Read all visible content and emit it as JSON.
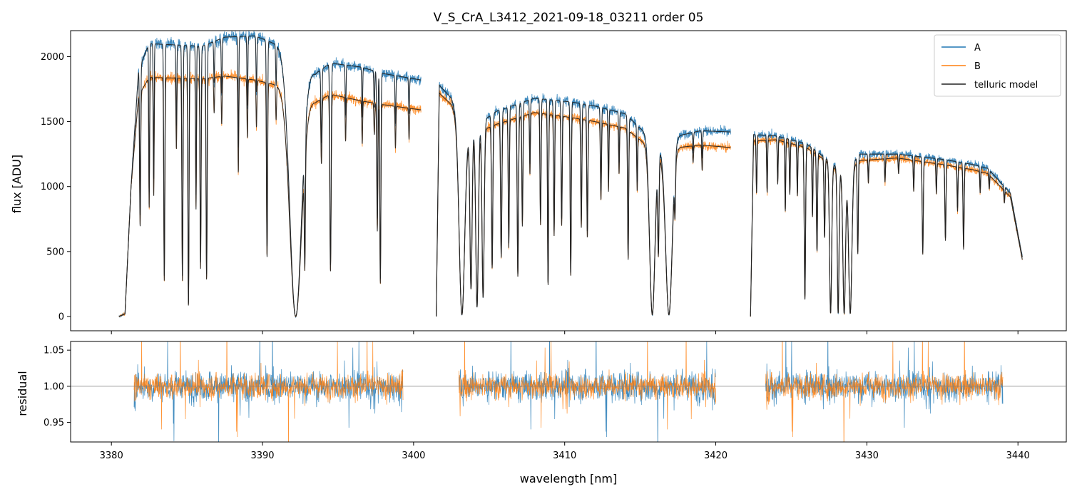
{
  "colors": {
    "A": "#1f77b4",
    "B": "#ff7f0e",
    "model": "#222222",
    "frame": "#000000",
    "refline": "#808080"
  },
  "chart_data": [
    {
      "type": "line",
      "id": "flux-panel",
      "title": "V_S_CrA_L3412_2021-09-18_03211  order 05",
      "xlabel": "",
      "ylabel": "flux [ADU]",
      "xlim": [
        3377.3,
        3443.2
      ],
      "ylim": [
        -110,
        2200
      ],
      "xticks": [
        3380,
        3390,
        3400,
        3410,
        3420,
        3430,
        3440
      ],
      "xtick_labels_visible": false,
      "yticks": [
        0,
        500,
        1000,
        1500,
        2000
      ],
      "ytick_labels": [
        "0",
        "500",
        "1000",
        "1500",
        "2000"
      ],
      "legend": {
        "position": "top-right",
        "entries": [
          "A",
          "B",
          "telluric model"
        ]
      },
      "segments": [
        {
          "x_range": [
            3380.5,
            3400.5
          ],
          "continuum_A": [
            [
              3380.5,
              0
            ],
            [
              3380.9,
              20
            ],
            [
              3381.3,
              1000
            ],
            [
              3381.8,
              1900
            ],
            [
              3382.5,
              2100
            ],
            [
              3386,
              2080
            ],
            [
              3387.5,
              2150
            ],
            [
              3389.5,
              2160
            ],
            [
              3391,
              2090
            ],
            [
              3393.5,
              1870
            ],
            [
              3394.5,
              1950
            ],
            [
              3396.5,
              1920
            ],
            [
              3398,
              1870
            ],
            [
              3400.5,
              1820
            ]
          ],
          "continuum_B": [
            [
              3380.5,
              0
            ],
            [
              3380.9,
              20
            ],
            [
              3381.3,
              1000
            ],
            [
              3381.8,
              1700
            ],
            [
              3382.5,
              1840
            ],
            [
              3386,
              1830
            ],
            [
              3387.5,
              1850
            ],
            [
              3389.5,
              1820
            ],
            [
              3391,
              1780
            ],
            [
              3393.5,
              1650
            ],
            [
              3394.5,
              1710
            ],
            [
              3396.5,
              1660
            ],
            [
              3398,
              1630
            ],
            [
              3400.5,
              1590
            ]
          ]
        },
        {
          "x_range": [
            3401.5,
            3421.0
          ],
          "continuum_A": [
            [
              3401.5,
              0
            ],
            [
              3401.7,
              1780
            ],
            [
              3402.5,
              1680
            ],
            [
              3403.3,
              1400
            ],
            [
              3405.5,
              1580
            ],
            [
              3408,
              1680
            ],
            [
              3410.5,
              1650
            ],
            [
              3412,
              1620
            ],
            [
              3414,
              1560
            ],
            [
              3416.5,
              1280
            ],
            [
              3417.5,
              1390
            ],
            [
              3419,
              1430
            ],
            [
              3421,
              1420
            ]
          ],
          "continuum_B": [
            [
              3401.5,
              0
            ],
            [
              3401.7,
              1720
            ],
            [
              3402.5,
              1630
            ],
            [
              3403.3,
              1370
            ],
            [
              3405.5,
              1480
            ],
            [
              3408,
              1570
            ],
            [
              3410.5,
              1530
            ],
            [
              3412,
              1500
            ],
            [
              3414,
              1450
            ],
            [
              3416.5,
              1220
            ],
            [
              3417.5,
              1300
            ],
            [
              3419,
              1320
            ],
            [
              3421,
              1300
            ]
          ]
        },
        {
          "x_range": [
            3422.3,
            3440.3
          ],
          "continuum_A": [
            [
              3422.3,
              0
            ],
            [
              3422.5,
              1400
            ],
            [
              3424,
              1390
            ],
            [
              3426,
              1330
            ],
            [
              3427.5,
              1200
            ],
            [
              3428.5,
              1100
            ],
            [
              3429.5,
              1250
            ],
            [
              3432,
              1250
            ],
            [
              3435,
              1210
            ],
            [
              3437,
              1170
            ],
            [
              3438,
              1140
            ],
            [
              3439.5,
              950
            ],
            [
              3440.3,
              450
            ]
          ],
          "continuum_B": [
            [
              3422.3,
              0
            ],
            [
              3422.5,
              1350
            ],
            [
              3424,
              1360
            ],
            [
              3426,
              1300
            ],
            [
              3427.5,
              1180
            ],
            [
              3428.5,
              1080
            ],
            [
              3429.5,
              1200
            ],
            [
              3432,
              1220
            ],
            [
              3435,
              1170
            ],
            [
              3437,
              1130
            ],
            [
              3438,
              1100
            ],
            [
              3439.5,
              920
            ],
            [
              3440.3,
              430
            ]
          ]
        }
      ],
      "absorption_lines": [
        [
          3381.9,
          0.6,
          0.05
        ],
        [
          3382.5,
          0.55,
          0.04
        ],
        [
          3382.8,
          0.5,
          0.04
        ],
        [
          3383.5,
          0.85,
          0.05
        ],
        [
          3384.3,
          0.3,
          0.04
        ],
        [
          3384.7,
          0.85,
          0.05
        ],
        [
          3385.1,
          0.96,
          0.05
        ],
        [
          3385.6,
          0.55,
          0.04
        ],
        [
          3385.9,
          0.8,
          0.05
        ],
        [
          3386.3,
          0.85,
          0.05
        ],
        [
          3386.8,
          0.15,
          0.04
        ],
        [
          3387.3,
          0.2,
          0.04
        ],
        [
          3388.4,
          0.4,
          0.04
        ],
        [
          3389,
          0.25,
          0.04
        ],
        [
          3389.6,
          0.2,
          0.04
        ],
        [
          3390.3,
          0.75,
          0.05
        ],
        [
          3390.9,
          0.15,
          0.04
        ],
        [
          3392.2,
          1.0,
          0.55
        ],
        [
          3392.8,
          0.7,
          0.05
        ],
        [
          3393.9,
          0.3,
          0.05
        ],
        [
          3394.5,
          0.8,
          0.06
        ],
        [
          3395.5,
          0.2,
          0.04
        ],
        [
          3396.6,
          0.2,
          0.04
        ],
        [
          3397.4,
          0.15,
          0.04
        ],
        [
          3397.6,
          0.6,
          0.05
        ],
        [
          3397.8,
          0.85,
          0.05
        ],
        [
          3398.8,
          0.2,
          0.04
        ],
        [
          3399.7,
          0.15,
          0.04
        ],
        [
          3403.2,
          0.99,
          0.25
        ],
        [
          3403.8,
          0.85,
          0.1
        ],
        [
          3404.2,
          0.95,
          0.12
        ],
        [
          3404.6,
          0.9,
          0.1
        ],
        [
          3405.2,
          0.75,
          0.06
        ],
        [
          3405.8,
          0.7,
          0.06
        ],
        [
          3406.3,
          0.65,
          0.05
        ],
        [
          3406.9,
          0.8,
          0.06
        ],
        [
          3407.2,
          0.55,
          0.05
        ],
        [
          3407.7,
          0.3,
          0.04
        ],
        [
          3408.4,
          0.55,
          0.05
        ],
        [
          3408.9,
          0.85,
          0.05
        ],
        [
          3409.3,
          0.6,
          0.05
        ],
        [
          3409.8,
          0.55,
          0.05
        ],
        [
          3410.4,
          0.8,
          0.05
        ],
        [
          3411.1,
          0.55,
          0.05
        ],
        [
          3411.5,
          0.6,
          0.05
        ],
        [
          3412.4,
          0.4,
          0.05
        ],
        [
          3412.9,
          0.35,
          0.04
        ],
        [
          3413.6,
          0.25,
          0.04
        ],
        [
          3414.2,
          0.7,
          0.05
        ],
        [
          3414.8,
          0.3,
          0.04
        ],
        [
          3415.8,
          0.99,
          0.25
        ],
        [
          3416.2,
          0.6,
          0.06
        ],
        [
          3416.9,
          0.99,
          0.3
        ],
        [
          3417.3,
          0.3,
          0.05
        ],
        [
          3418.5,
          0.1,
          0.04
        ],
        [
          3419.1,
          0.15,
          0.04
        ],
        [
          3422.7,
          0.3,
          0.04
        ],
        [
          3423.4,
          0.3,
          0.04
        ],
        [
          3424.1,
          0.25,
          0.04
        ],
        [
          3424.6,
          0.4,
          0.04
        ],
        [
          3424.9,
          0.3,
          0.04
        ],
        [
          3425.4,
          0.3,
          0.04
        ],
        [
          3425.9,
          0.9,
          0.06
        ],
        [
          3426.4,
          0.4,
          0.04
        ],
        [
          3426.7,
          0.6,
          0.05
        ],
        [
          3427.2,
          0.5,
          0.05
        ],
        [
          3427.6,
          0.98,
          0.1
        ],
        [
          3428.1,
          0.98,
          0.08
        ],
        [
          3428.5,
          0.98,
          0.12
        ],
        [
          3428.9,
          0.98,
          0.15
        ],
        [
          3429.4,
          0.6,
          0.05
        ],
        [
          3430.1,
          0.15,
          0.04
        ],
        [
          3431.2,
          0.15,
          0.04
        ],
        [
          3432.1,
          0.1,
          0.04
        ],
        [
          3433.1,
          0.2,
          0.04
        ],
        [
          3433.7,
          0.6,
          0.05
        ],
        [
          3434.6,
          0.2,
          0.04
        ],
        [
          3435.2,
          0.5,
          0.05
        ],
        [
          3436,
          0.3,
          0.04
        ],
        [
          3436.4,
          0.55,
          0.05
        ],
        [
          3437.5,
          0.15,
          0.04
        ],
        [
          3438.1,
          0.1,
          0.04
        ],
        [
          3439.1,
          0.1,
          0.04
        ]
      ],
      "absorption_line_fields": [
        "wavelength_nm",
        "fractional_depth",
        "width_nm"
      ]
    },
    {
      "type": "line",
      "id": "residual-panel",
      "title": "",
      "xlabel": "wavelength [nm]",
      "ylabel": "residual",
      "xlim": [
        3377.3,
        3443.2
      ],
      "ylim": [
        0.923,
        1.062
      ],
      "xticks": [
        3380,
        3390,
        3400,
        3410,
        3420,
        3430,
        3440
      ],
      "xtick_labels": [
        "3380",
        "3390",
        "3400",
        "3410",
        "3420",
        "3430",
        "3440"
      ],
      "yticks": [
        0.95,
        1.0,
        1.05
      ],
      "ytick_labels": [
        "0.95",
        "1.00",
        "1.05"
      ],
      "reference_line": 1.0,
      "segments": [
        [
          3381.5,
          3399.3
        ],
        [
          3403.0,
          3420.0
        ],
        [
          3423.3,
          3439.0
        ]
      ],
      "noise_sigma": {
        "A": 0.027,
        "B": 0.022
      },
      "grid": false
    }
  ]
}
